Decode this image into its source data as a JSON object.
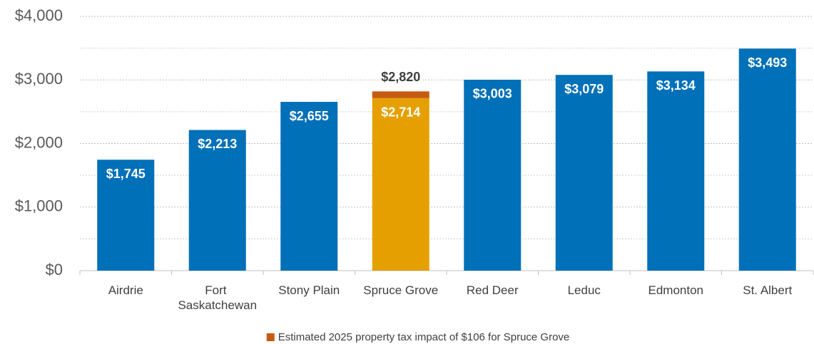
{
  "chart_data": {
    "type": "stacked_bar",
    "categories": [
      "Airdrie",
      "Fort Saskatchewan",
      "Stony Plain",
      "Spruce Grove",
      "Red Deer",
      "Leduc",
      "Edmonton",
      "St. Albert"
    ],
    "series": [
      {
        "values": [
          1745,
          2213,
          2655,
          2714,
          3003,
          3079,
          3134,
          3493
        ],
        "value_labels": [
          "$1,745",
          "$2,213",
          "$2,655",
          "$2,714",
          "$3,003",
          "$3,079",
          "$3,134",
          "$3,493"
        ],
        "colors": [
          "#0070b8",
          "#0070b8",
          "#0070b8",
          "#e5a000",
          "#0070b8",
          "#0070b8",
          "#0070b8",
          "#0070b8"
        ]
      },
      {
        "name": "Estimated 2025 property tax impact of $106 for Spruce Grove",
        "color": "#c55a11",
        "values": [
          null,
          null,
          null,
          106,
          null,
          null,
          null,
          null
        ]
      }
    ],
    "annotations": [
      {
        "text": "$2,820",
        "category": 3
      }
    ],
    "ylim": [
      0,
      4000
    ],
    "yticks": [
      {
        "value": 0,
        "label": "$0"
      },
      {
        "value": 1000,
        "label": "$1,000"
      },
      {
        "value": 2000,
        "label": "$2,000"
      },
      {
        "value": 3000,
        "label": "$3,000"
      },
      {
        "value": 4000,
        "label": "$4,000"
      }
    ],
    "yminor": [
      500,
      1500,
      2500,
      3500
    ],
    "grid": true,
    "legend": "bottom"
  }
}
